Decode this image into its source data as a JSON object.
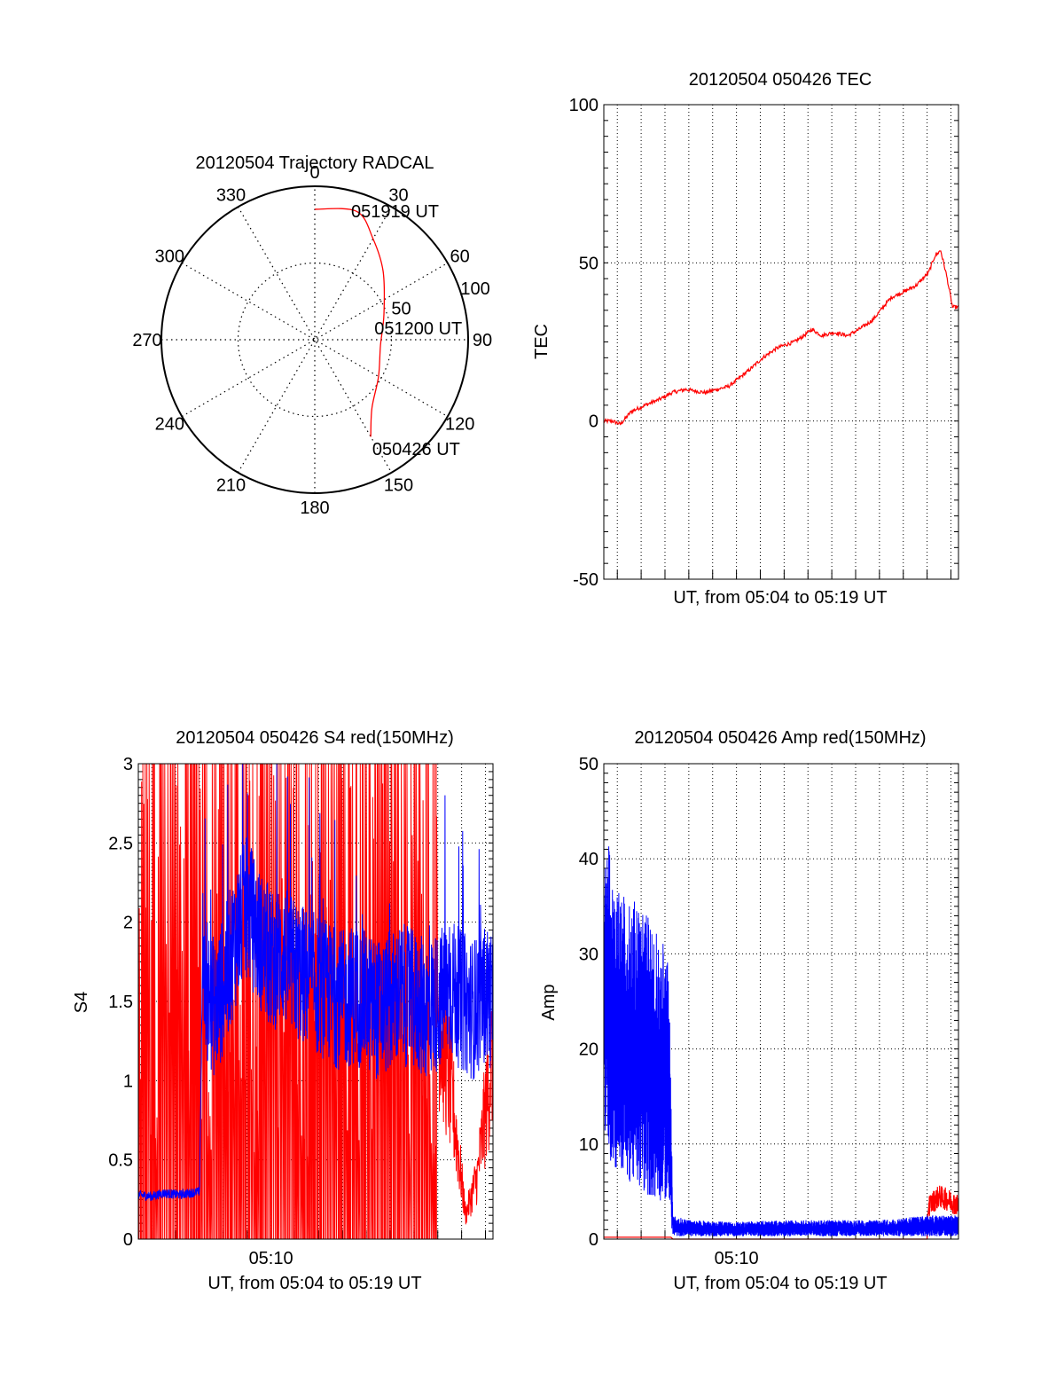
{
  "chart_data": [
    {
      "type": "polar",
      "title": "20120504 Trajectory RADCAL",
      "angle_labels": [
        "0",
        "30",
        "60",
        "90",
        "120",
        "150",
        "180",
        "210",
        "240",
        "270",
        "300",
        "330"
      ],
      "radius_labels": [
        "50",
        "100"
      ],
      "rlim": [
        0,
        100
      ],
      "grid": true,
      "series": [
        {
          "color": "#ff0000",
          "points": [
            {
              "az": 150,
              "r": 73
            },
            {
              "az": 140,
              "r": 58
            },
            {
              "az": 120,
              "r": 48
            },
            {
              "az": 95,
              "r": 43
            },
            {
              "az": 70,
              "r": 48
            },
            {
              "az": 45,
              "r": 63
            },
            {
              "az": 30,
              "r": 76
            },
            {
              "az": 18,
              "r": 88
            },
            {
              "az": 0,
              "r": 85
            }
          ]
        }
      ],
      "annotations": [
        {
          "text": "051919 UT",
          "az": 18,
          "r": 88
        },
        {
          "text": "051200 UT",
          "az": 80,
          "r": 43
        },
        {
          "text": "050426 UT",
          "az": 150,
          "r": 82
        }
      ]
    },
    {
      "type": "line",
      "title": "20120504 050426 TEC",
      "xlabel": "UT, from 05:04 to 05:19 UT",
      "ylabel": "TEC",
      "xlim": [
        "05:04:26",
        "05:19:19"
      ],
      "ylim": [
        -50,
        100
      ],
      "yticks": [
        "100",
        "50",
        "0",
        "-50"
      ],
      "grid": true,
      "series": [
        {
          "color": "#ff0000",
          "x": [
            "05:04:26",
            "05:04:47",
            "05:05:08",
            "05:05:35",
            "05:06:10",
            "05:06:49",
            "05:07:18",
            "05:07:52",
            "05:08:41",
            "05:09:41",
            "05:10:31",
            "05:11:06",
            "05:11:41",
            "05:12:01",
            "05:12:26",
            "05:12:50",
            "05:13:10",
            "05:13:35",
            "05:14:05",
            "05:14:40",
            "05:15:09",
            "05:15:44",
            "05:16:09",
            "05:16:29",
            "05:17:04",
            "05:17:34",
            "05:18:04",
            "05:18:19",
            "05:18:34",
            "05:18:49",
            "05:19:04",
            "05:19:19"
          ],
          "values": [
            0,
            0,
            -1,
            3,
            5,
            7,
            9,
            10,
            9,
            11,
            16,
            20,
            23,
            24,
            25,
            27,
            29,
            27,
            28,
            27,
            29,
            32,
            36,
            39,
            41,
            43,
            47,
            52,
            54,
            46,
            36,
            36
          ]
        }
      ]
    },
    {
      "type": "line",
      "title": "20120504 050426 S4 red(150MHz)",
      "xlabel": "UT, from 05:04 to 05:19 UT",
      "ylabel": "S4",
      "xlim": [
        "05:04:26",
        "05:19:19"
      ],
      "ylim": [
        0,
        3
      ],
      "xticks": [
        "05:10"
      ],
      "yticks": [
        "3",
        "2.5",
        "2",
        "1.5",
        "1",
        "0.5",
        "0"
      ],
      "grid": true,
      "series": [
        {
          "color": "#ff0000",
          "description_level": "red saturating spikes between 0 and 3 from 05:04:26 to about 05:17:00, then values 0.1 to 1.8 until 05:19:19",
          "x": [
            "05:04:26",
            "05:04:33",
            "05:04:56",
            "05:05:15",
            "05:05:34",
            "05:06:07",
            "05:06:45",
            "05:07:33",
            "05:08:15",
            "05:09:00",
            "05:10:00",
            "05:11:00",
            "05:12:00",
            "05:13:00",
            "05:14:00",
            "05:15:00",
            "05:16:00",
            "05:17:00",
            "05:17:40",
            "05:18:10",
            "05:18:40",
            "05:19:19"
          ],
          "values": [
            3,
            0,
            3,
            0,
            3,
            0,
            3,
            0,
            3,
            0,
            3,
            0,
            3,
            0,
            3,
            0,
            3,
            1.5,
            0.8,
            0.15,
            0.4,
            1.2
          ]
        },
        {
          "color": "#0000ff",
          "x": [
            "05:04:26",
            "05:05:00",
            "05:05:30",
            "05:06:10",
            "05:07:00",
            "05:07:08",
            "05:07:20",
            "05:07:40",
            "05:08:00",
            "05:08:30",
            "05:09:00",
            "05:09:30",
            "05:10:00",
            "05:10:30",
            "05:11:00",
            "05:11:30",
            "05:12:00",
            "05:12:30",
            "05:13:00",
            "05:13:30",
            "05:14:00",
            "05:14:30",
            "05:15:00",
            "05:15:30",
            "05:16:00",
            "05:16:30",
            "05:17:00",
            "05:17:30",
            "05:18:00",
            "05:18:30",
            "05:19:00",
            "05:19:19"
          ],
          "values": [
            0.28,
            0.27,
            0.29,
            0.28,
            0.3,
            1.8,
            1.55,
            1.45,
            1.6,
            1.9,
            2.1,
            1.9,
            1.75,
            1.8,
            1.7,
            1.65,
            1.6,
            1.55,
            1.5,
            1.55,
            1.5,
            1.45,
            1.5,
            1.55,
            1.5,
            1.45,
            1.5,
            1.6,
            1.5,
            1.45,
            1.55,
            1.5
          ]
        }
      ]
    },
    {
      "type": "line",
      "title": "20120504 050426 Amp red(150MHz)",
      "xlabel": "UT, from 05:04 to 05:19 UT",
      "ylabel": "Amp",
      "xlim": [
        "05:04:26",
        "05:19:19"
      ],
      "ylim": [
        0,
        50
      ],
      "xticks": [
        "05:10"
      ],
      "yticks": [
        "50",
        "40",
        "30",
        "20",
        "10",
        "0"
      ],
      "grid": true,
      "series": [
        {
          "color": "#0000ff",
          "x": [
            "05:04:26",
            "05:04:40",
            "05:05:00",
            "05:05:30",
            "05:06:00",
            "05:06:30",
            "05:07:00",
            "05:07:10",
            "05:07:20",
            "05:08:00",
            "05:10:00",
            "05:12:00",
            "05:14:00",
            "05:16:00",
            "05:18:00",
            "05:19:19"
          ],
          "upper": [
            38,
            42,
            37,
            36,
            35,
            33,
            31,
            28,
            2.5,
            2,
            1.8,
            2,
            2,
            2,
            2.5,
            2.5
          ],
          "lower": [
            12,
            8,
            7,
            6,
            5,
            4,
            4,
            3,
            0.3,
            0.3,
            0.3,
            0.3,
            0.3,
            0.3,
            0.3,
            0.3
          ]
        },
        {
          "color": "#ff0000",
          "x": [
            "05:04:26",
            "05:07:15",
            "05:07:20",
            "05:18:00",
            "05:18:03",
            "05:18:30",
            "05:19:00",
            "05:19:19"
          ],
          "values": [
            0.2,
            0.2,
            0,
            0,
            3.5,
            4.5,
            4,
            3.5
          ]
        }
      ]
    }
  ]
}
